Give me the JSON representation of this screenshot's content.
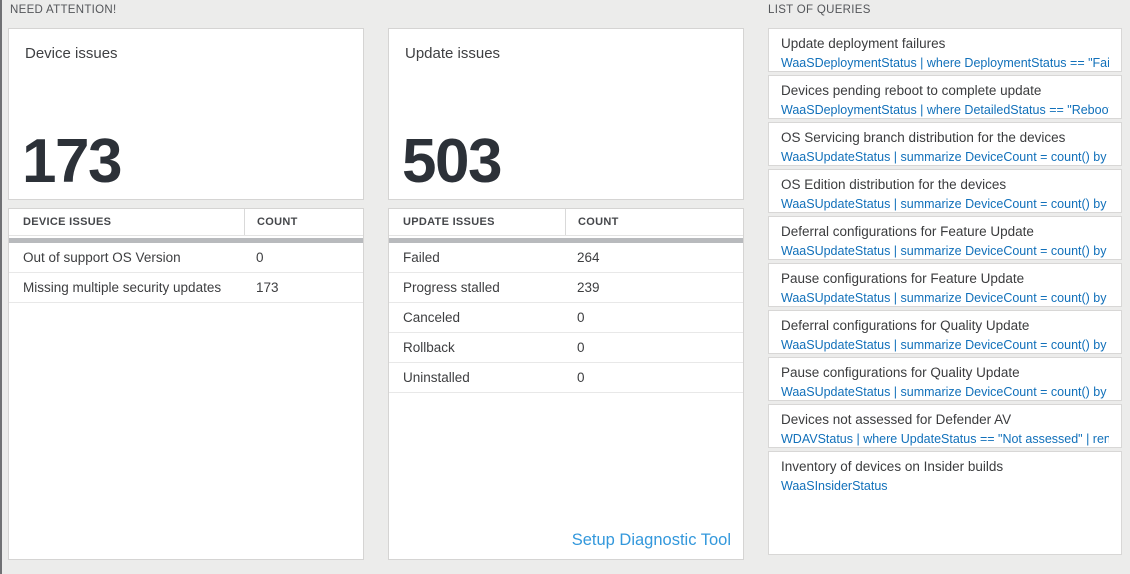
{
  "sections": {
    "need_attention_label": "NEED ATTENTION!",
    "list_of_queries_label": "LIST OF QUERIES"
  },
  "device_tile": {
    "title": "Device issues",
    "count": "173"
  },
  "update_tile": {
    "title": "Update issues",
    "count": "503"
  },
  "device_table": {
    "headers": [
      "DEVICE ISSUES",
      "COUNT"
    ],
    "rows": [
      {
        "label": "Out of support OS Version",
        "count": "0"
      },
      {
        "label": "Missing multiple security updates",
        "count": "173"
      }
    ]
  },
  "update_table": {
    "headers": [
      "UPDATE ISSUES",
      "COUNT"
    ],
    "rows": [
      {
        "label": "Failed",
        "count": "264"
      },
      {
        "label": "Progress stalled",
        "count": "239"
      },
      {
        "label": "Canceled",
        "count": "0"
      },
      {
        "label": "Rollback",
        "count": "0"
      },
      {
        "label": "Uninstalled",
        "count": "0"
      }
    ],
    "footer_link": "Setup Diagnostic Tool"
  },
  "queries": [
    {
      "title": "Update deployment failures",
      "query": "WaaSDeploymentStatus | where DeploymentStatus == \"Failed\" |..."
    },
    {
      "title": "Devices pending reboot to complete update",
      "query": "WaaSDeploymentStatus | where DetailedStatus == \"Reboot pend..."
    },
    {
      "title": "OS Servicing branch distribution for the devices",
      "query": "WaaSUpdateStatus | summarize DeviceCount = count() by OSSer..."
    },
    {
      "title": "OS Edition distribution for the devices",
      "query": "WaaSUpdateStatus | summarize DeviceCount = count() by OSEdit..."
    },
    {
      "title": "Deferral configurations for Feature Update",
      "query": "WaaSUpdateStatus | summarize DeviceCount = count() by Featur..."
    },
    {
      "title": "Pause configurations for Feature Update",
      "query": "WaaSUpdateStatus | summarize DeviceCount = count() by Featur..."
    },
    {
      "title": "Deferral configurations for Quality Update",
      "query": "WaaSUpdateStatus | summarize DeviceCount = count() by Qualit..."
    },
    {
      "title": "Pause configurations for Quality Update",
      "query": "WaaSUpdateStatus | summarize DeviceCount = count() by Qualit..."
    },
    {
      "title": "Devices not assessed for Defender AV",
      "query": "WDAVStatus | where UpdateStatus == \"Not assessed\" | render ta..."
    },
    {
      "title": "Inventory of devices on Insider builds",
      "query": "WaaSInsiderStatus"
    }
  ],
  "colors": {
    "query_link_blue": "#1170ba",
    "action_link_blue": "#3398dc",
    "scrollbar_gray": "#b8babd",
    "big_number": "#2c3138",
    "page_background": "#ececeb"
  }
}
